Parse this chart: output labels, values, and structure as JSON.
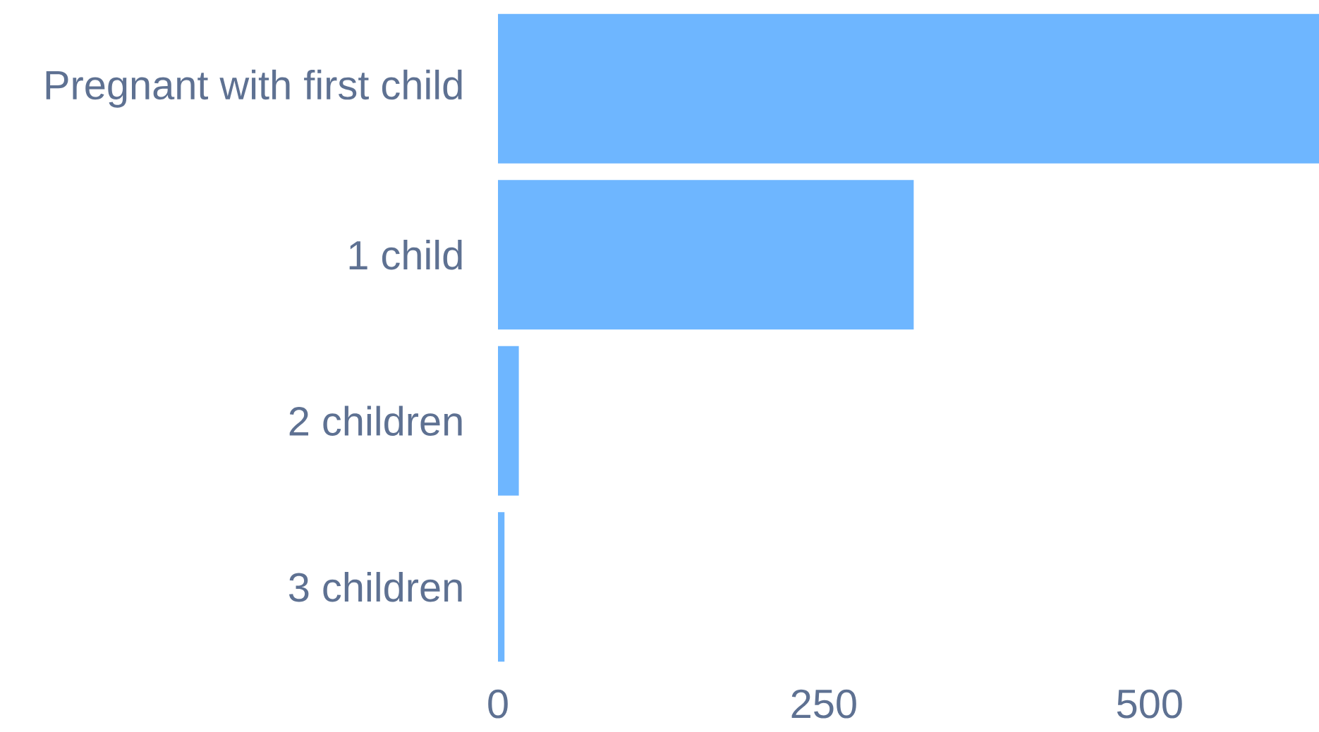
{
  "chart_data": {
    "type": "bar",
    "orientation": "horizontal",
    "categories": [
      "Pregnant with first child",
      "1 child",
      "2 children",
      "3 children"
    ],
    "values": [
      630,
      319,
      16,
      5
    ],
    "color": "#6eb6ff",
    "xlim": [
      0,
      630
    ],
    "xticks": [
      0,
      250,
      500
    ]
  }
}
